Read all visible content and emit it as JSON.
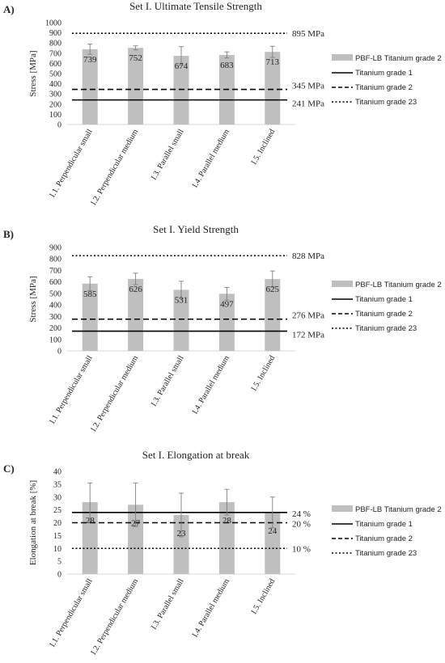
{
  "chart_data": [
    {
      "type": "bar",
      "panel": "A)",
      "title": "Set I. Ultimate Tensile Strength",
      "ylabel": "Stress [MPa]",
      "xlabel": "",
      "ylim": [
        0,
        1000
      ],
      "ytick_step": 100,
      "categories": [
        "I.1. Perpendicular small",
        "I.2. Perpendicular medium",
        "I.3. Parallel small",
        "I.4. Parallel medium",
        "I.5. Inclined"
      ],
      "series": [
        {
          "name": "PBF-LB Titanium grade 2",
          "values": [
            739,
            752,
            674,
            683,
            713
          ],
          "labels": [
            "739",
            "752",
            "674",
            "683",
            "713"
          ],
          "errors": [
            50,
            20,
            90,
            30,
            55
          ],
          "color": "#bfbfbf"
        }
      ],
      "reference_lines": [
        {
          "name": "Titanium grade 1",
          "value": 241,
          "label": "241 MPa",
          "style": "solid"
        },
        {
          "name": "Titanium grade 2",
          "value": 345,
          "label": "345 MPa",
          "style": "dashed"
        },
        {
          "name": "Titanium grade 23",
          "value": 895,
          "label": "895 MPa",
          "style": "dotted"
        }
      ],
      "grid": false,
      "legend_position": "right"
    },
    {
      "type": "bar",
      "panel": "B)",
      "title": "Set I. Yield Strength",
      "ylabel": "Stress [MPa]",
      "xlabel": "",
      "ylim": [
        0,
        900
      ],
      "ytick_step": 100,
      "categories": [
        "I.1. Perpendicular small",
        "I.2. Perpendicular medium",
        "I.3. Parallel small",
        "I.4. Parallel medium",
        "I.5. Inclined"
      ],
      "series": [
        {
          "name": "PBF-LB Titanium grade 2",
          "values": [
            585,
            626,
            531,
            497,
            625
          ],
          "labels": [
            "585",
            "626",
            "531",
            "497",
            "625"
          ],
          "errors": [
            60,
            50,
            75,
            55,
            70
          ],
          "color": "#bfbfbf"
        }
      ],
      "reference_lines": [
        {
          "name": "Titanium grade 1",
          "value": 172,
          "label": "172 MPa",
          "style": "solid"
        },
        {
          "name": "Titanium grade 2",
          "value": 276,
          "label": "276 MPa",
          "style": "dashed"
        },
        {
          "name": "Titanium grade 23",
          "value": 828,
          "label": "828 MPa",
          "style": "dotted"
        }
      ],
      "grid": false,
      "legend_position": "right"
    },
    {
      "type": "bar",
      "panel": "C)",
      "title": "Set I. Elongation at break",
      "ylabel": "Elongation at break [%]",
      "xlabel": "",
      "ylim": [
        0,
        40
      ],
      "ytick_step": 5,
      "categories": [
        "I.1. Perpendicular small",
        "I.2. Perpendicular medium",
        "I.3. Parallel small",
        "I.4. Parallel medium",
        "I.5. Inclined"
      ],
      "series": [
        {
          "name": "PBF-LB Titanium grade 2",
          "values": [
            28,
            27,
            23,
            28,
            24
          ],
          "labels": [
            "28",
            "27",
            "23",
            "28",
            "24"
          ],
          "errors": [
            7.5,
            8.5,
            8.5,
            5,
            6
          ],
          "color": "#bfbfbf"
        }
      ],
      "reference_lines": [
        {
          "name": "Titanium grade 1",
          "value": 24,
          "label": "24 %",
          "style": "solid"
        },
        {
          "name": "Titanium grade 2",
          "value": 20,
          "label": "20 %",
          "style": "dashed"
        },
        {
          "name": "Titanium grade 23",
          "value": 10,
          "label": "10 %",
          "style": "dotted"
        }
      ],
      "grid": false,
      "legend_position": "right"
    }
  ]
}
